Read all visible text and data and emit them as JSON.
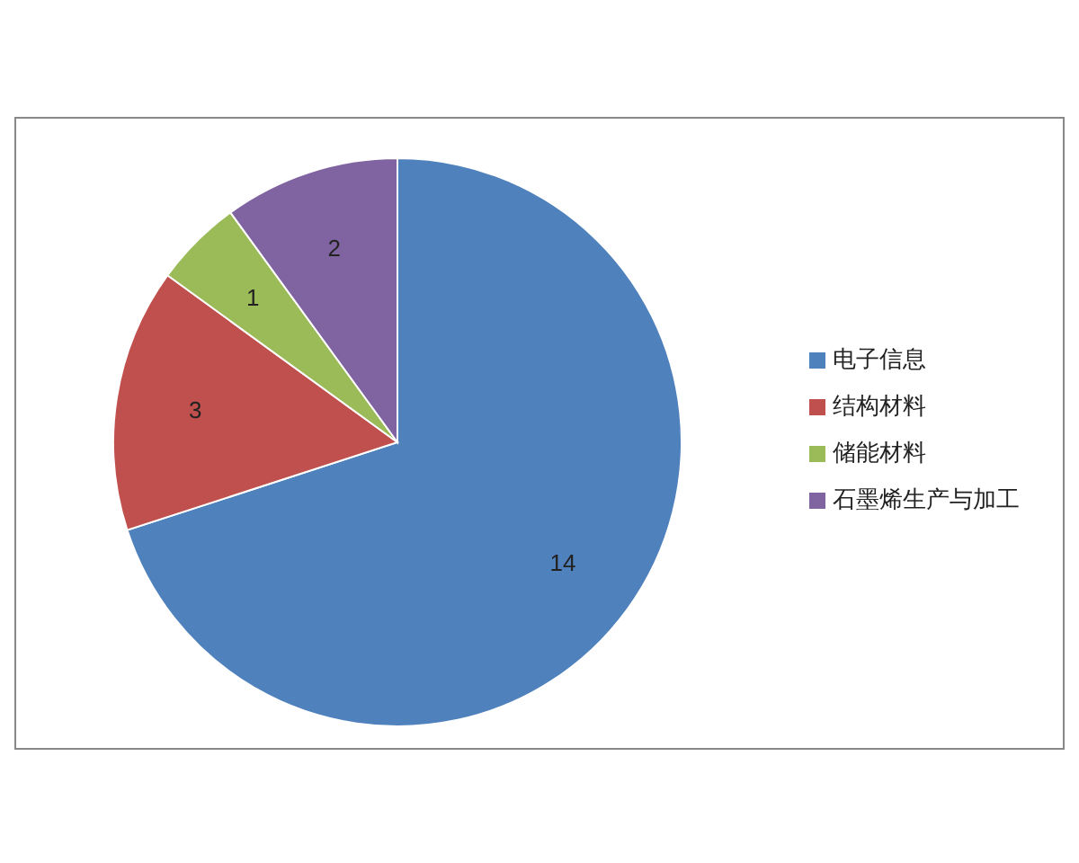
{
  "chart_data": {
    "type": "pie",
    "categories": [
      "电子信息",
      "结构材料",
      "储能材料",
      "石墨烯生产与加工"
    ],
    "values": [
      14,
      3,
      1,
      2
    ],
    "colors": [
      "#4f81bd",
      "#c0504d",
      "#9bbb59",
      "#8064a2"
    ],
    "data_labels": true,
    "legend": "right"
  }
}
